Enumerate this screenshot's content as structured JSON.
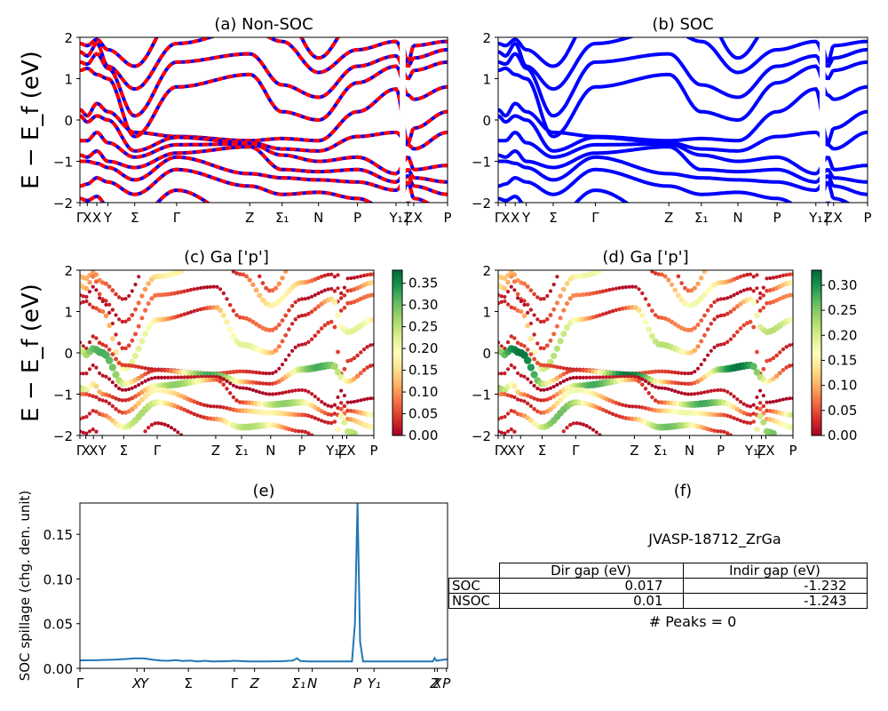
{
  "chart_data": [
    {
      "type": "line",
      "panel": "a",
      "title": "(a) Non-SOC",
      "ylabel": "E − E_f (eV)",
      "ylim": [
        -2,
        2
      ],
      "yticks": [
        "2",
        "1",
        "0",
        "−1",
        "−2"
      ],
      "xticks": [
        "Γ",
        "X",
        "X",
        "Y",
        "Σ",
        "Γ",
        "Z",
        "Σ₁",
        "N",
        "P",
        "Y₁",
        "Z",
        "| X",
        "P"
      ],
      "series": [
        {
          "style": "red dashed over blue",
          "bands_at_first_point": [
            1.85,
            1.65,
            1.4,
            1.2,
            0.25,
            0.1,
            -0.5,
            -0.85,
            -1.0,
            -1.6,
            -1.9
          ]
        }
      ]
    },
    {
      "type": "line",
      "panel": "b",
      "title": "(b) SOC",
      "ylim": [
        -2,
        2
      ],
      "yticks": [
        "2",
        "1",
        "0",
        "−1",
        "−2"
      ],
      "xticks": [
        "Γ",
        "X",
        "X",
        "Y",
        "Σ",
        "Γ",
        "Z",
        "Σ₁",
        "N",
        "P",
        "Y₁",
        "Z",
        "| X",
        "P"
      ],
      "series": [
        {
          "style": "solid blue",
          "bands_at_first_point": [
            1.85,
            1.65,
            1.4,
            1.2,
            0.25,
            0.1,
            -0.5,
            -0.85,
            -1.0,
            -1.6,
            -1.9
          ]
        }
      ]
    },
    {
      "type": "scatter",
      "panel": "c",
      "title": "(c)  Ga ['p']",
      "ylabel": "E − E_f (eV)",
      "ylim": [
        -2,
        2
      ],
      "yticks": [
        "2",
        "1",
        "0",
        "−1",
        "−2"
      ],
      "xticks": [
        "Γ",
        "X",
        "X",
        "Y",
        "Σ",
        "Γ",
        "Z",
        "Σ₁",
        "N",
        "P",
        "Y₁",
        "Z",
        "| X",
        "P"
      ],
      "colorbar": {
        "colormap": "RdYlGn",
        "min": 0.0,
        "max": 0.38,
        "ticks": [
          "0.35",
          "0.30",
          "0.25",
          "0.20",
          "0.15",
          "0.10",
          "0.05",
          "0.00"
        ],
        "tick_values": [
          0.35,
          0.3,
          0.25,
          0.2,
          0.15,
          0.1,
          0.05,
          0.0
        ]
      }
    },
    {
      "type": "scatter",
      "panel": "d",
      "title": "(d) Ga ['p']",
      "ylim": [
        -2,
        2
      ],
      "yticks": [
        "2",
        "1",
        "0",
        "−1",
        "−2"
      ],
      "xticks": [
        "Γ",
        "X",
        "X",
        "Y",
        "Σ",
        "Γ",
        "Z",
        "Σ₁",
        "N",
        "P",
        "Y₁",
        "Z",
        "| X",
        "P"
      ],
      "colorbar": {
        "colormap": "RdYlGn",
        "min": 0.0,
        "max": 0.33,
        "ticks": [
          "0.30",
          "0.25",
          "0.20",
          "0.15",
          "0.10",
          "0.05",
          "0.00"
        ],
        "tick_values": [
          0.3,
          0.25,
          0.2,
          0.15,
          0.1,
          0.05,
          0.0
        ]
      }
    },
    {
      "type": "line",
      "panel": "e",
      "title": "(e)",
      "ylabel": "SOC spillage (chg. den. unit)",
      "ylim": [
        0,
        0.185
      ],
      "xlim": [
        0,
        1
      ],
      "yticks": [
        {
          "label": "0.00",
          "value": 0.0
        },
        {
          "label": "0.05",
          "value": 0.05
        },
        {
          "label": "0.10",
          "value": 0.1
        },
        {
          "label": "0.15",
          "value": 0.15
        }
      ],
      "xticks": [
        {
          "label": "Γ",
          "pos": 0.0
        },
        {
          "label": "X",
          "pos": 0.155
        },
        {
          "label": "Y",
          "pos": 0.175
        },
        {
          "label": "Σ",
          "pos": 0.295
        },
        {
          "label": "Γ",
          "pos": 0.42
        },
        {
          "label": "Z",
          "pos": 0.475
        },
        {
          "label": "Σ₁",
          "pos": 0.595
        },
        {
          "label": "N",
          "pos": 0.632
        },
        {
          "label": "P",
          "pos": 0.755
        },
        {
          "label": "Y₁",
          "pos": 0.8
        },
        {
          "label": "Z",
          "pos": 0.965
        },
        {
          "label": "X",
          "pos": 0.972
        },
        {
          "label": "P",
          "pos": 0.997
        }
      ],
      "series": [
        {
          "color": "#1f77b4",
          "x": [
            0,
            0.05,
            0.1,
            0.13,
            0.15,
            0.17,
            0.18,
            0.2,
            0.22,
            0.24,
            0.26,
            0.28,
            0.3,
            0.32,
            0.34,
            0.36,
            0.4,
            0.42,
            0.46,
            0.5,
            0.55,
            0.58,
            0.59,
            0.6,
            0.62,
            0.7,
            0.74,
            0.748,
            0.755,
            0.762,
            0.77,
            0.8,
            0.9,
            0.96,
            0.965,
            0.97,
            0.98,
            1.0
          ],
          "y": [
            0.009,
            0.0092,
            0.0098,
            0.0105,
            0.0112,
            0.0112,
            0.0108,
            0.0095,
            0.0088,
            0.0085,
            0.0092,
            0.0082,
            0.0088,
            0.0078,
            0.0085,
            0.0077,
            0.008,
            0.0085,
            0.0078,
            0.0078,
            0.008,
            0.0088,
            0.0112,
            0.0082,
            0.0078,
            0.0078,
            0.0078,
            0.05,
            0.185,
            0.03,
            0.0078,
            0.0078,
            0.0078,
            0.0078,
            0.0115,
            0.0085,
            0.0092,
            0.0102
          ]
        }
      ]
    }
  ],
  "info": {
    "title": "(f)",
    "material": "JVASP-18712_ZrGa",
    "table": {
      "headers": [
        "Dir gap (eV)",
        "Indir gap (eV)"
      ],
      "rows": [
        {
          "label": "SOC",
          "dir": "0.017",
          "indir": "-1.232"
        },
        {
          "label": "NSOC",
          "dir": "0.01",
          "indir": "-1.243"
        }
      ]
    },
    "peaks": "# Peaks = 0"
  }
}
